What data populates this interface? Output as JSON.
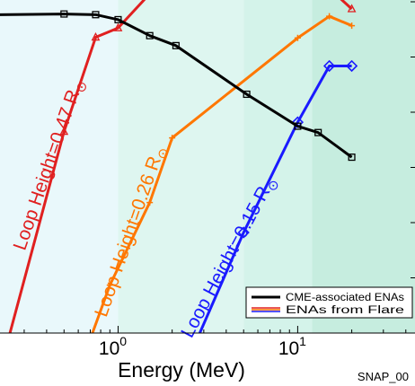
{
  "chart_data": {
    "type": "line",
    "x_scale": "log",
    "xlim": [
      0.22,
      45
    ],
    "ylim": [
      0,
      1
    ],
    "xlabel": "Energy (MeV)",
    "x_ticks": [
      {
        "value": 1,
        "base": "10",
        "exp": "0"
      },
      {
        "value": 10,
        "base": "10",
        "exp": "1"
      }
    ],
    "footer_label": "SNAP_00",
    "background_bands": [
      {
        "x_from": 0.22,
        "x_to": 1,
        "color": "#e9f8fb"
      },
      {
        "x_from": 1,
        "x_to": 5,
        "color": "#def6f0"
      },
      {
        "x_from": 5,
        "x_to": 12,
        "color": "#d4f3ea"
      },
      {
        "x_from": 12,
        "x_to": 45,
        "color": "#c6eddf"
      }
    ],
    "legend": {
      "position": "bottom-right",
      "entries": [
        {
          "label": "CME-associated ENAs",
          "colors": [
            "#000000"
          ]
        },
        {
          "label": "ENAs from Flare",
          "colors": [
            "#e02020",
            "#ff7700",
            "#1a1aff"
          ]
        }
      ]
    },
    "series": [
      {
        "group": "CME-associated ENAs",
        "color": "#000000",
        "marker": "square",
        "x": [
          0.22,
          0.5,
          0.75,
          1.0,
          1.5,
          2.1,
          5.2,
          10,
          13,
          20
        ],
        "y": [
          0.956,
          0.958,
          0.956,
          0.941,
          0.893,
          0.863,
          0.717,
          0.621,
          0.602,
          0.528
        ]
      },
      {
        "group": "ENAs from Flare",
        "annotation": {
          "text": "Loop Height=0.47 R",
          "sub": "⊙",
          "color": "#e02020",
          "x": 0.44,
          "y": 0.5,
          "angle": -71
        },
        "color": "#e02020",
        "marker": "triangle",
        "x": [
          0.25,
          0.5,
          0.75,
          1.0,
          1.6,
          15,
          20
        ],
        "y": [
          0.0,
          0.605,
          0.888,
          0.916,
          1.035,
          1.035,
          0.973
        ]
      },
      {
        "group": "ENAs from Flare",
        "annotation": {
          "text": "Loop Height=0.26 R",
          "sub": "⊙",
          "color": "#ff7700",
          "x": 1.25,
          "y": 0.3,
          "angle": -71
        },
        "color": "#ff7700",
        "marker": "plus",
        "x": [
          0.72,
          0.9,
          1.5,
          2.0,
          10,
          15,
          20
        ],
        "y": [
          0.0,
          0.144,
          0.392,
          0.586,
          0.886,
          0.951,
          0.923
        ]
      },
      {
        "group": "ENAs from Flare",
        "annotation": {
          "text": "Loop Height=0.15 R",
          "sub": "⊙",
          "color": "#1a1aff",
          "x": 4.4,
          "y": 0.22,
          "angle": -62
        },
        "color": "#1a1aff",
        "marker": "diamond",
        "x": [
          2.85,
          5.0,
          10,
          15,
          20
        ],
        "y": [
          0.0,
          0.302,
          0.633,
          0.802,
          0.802
        ]
      }
    ]
  }
}
